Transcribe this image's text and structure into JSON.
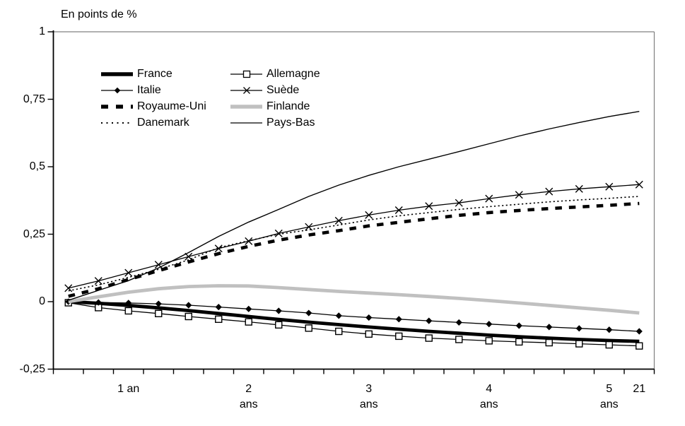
{
  "title": "En points de %",
  "colors": {
    "background": "#ffffff",
    "axis": "#000000",
    "plot_border": "#808080",
    "finland_gray": "#c0c0c0"
  },
  "chart_data": {
    "type": "line",
    "title": "En points de %",
    "xlabel": "",
    "ylabel": "En points de %",
    "ylim": [
      -0.25,
      1
    ],
    "grid": false,
    "legend_position": "top-left-two-columns",
    "n_points": 20,
    "y_ticks": [
      {
        "label": "1",
        "value": 1
      },
      {
        "label": "0,75",
        "value": 0.75
      },
      {
        "label": "0,5",
        "value": 0.5
      },
      {
        "label": "0,25",
        "value": 0.25
      },
      {
        "label": "0",
        "value": 0
      },
      {
        "label": "-0,25",
        "value": -0.25
      }
    ],
    "x_tick_labels": [
      {
        "text": "1 an",
        "sub": "",
        "category": 3
      },
      {
        "text": "2",
        "sub": "ans",
        "category": 7
      },
      {
        "text": "3",
        "sub": "ans",
        "category": 11
      },
      {
        "text": "4",
        "sub": "ans",
        "category": 15
      },
      {
        "text": "5",
        "sub": "ans",
        "category": 19
      },
      {
        "text": "21",
        "sub": "",
        "category": 20
      }
    ],
    "series": [
      {
        "name": "France",
        "color": "#000000",
        "style": "solid-thick",
        "marker": "none",
        "values": [
          0,
          -0.006,
          -0.014,
          -0.023,
          -0.033,
          -0.044,
          -0.055,
          -0.066,
          -0.076,
          -0.085,
          -0.094,
          -0.102,
          -0.11,
          -0.117,
          -0.124,
          -0.13,
          -0.135,
          -0.14,
          -0.144,
          -0.147
        ]
      },
      {
        "name": "Allemagne",
        "color": "#000000",
        "style": "solid-thin",
        "marker": "square-open",
        "values": [
          -0.004,
          -0.022,
          -0.034,
          -0.044,
          -0.055,
          -0.065,
          -0.075,
          -0.086,
          -0.098,
          -0.11,
          -0.12,
          -0.128,
          -0.135,
          -0.14,
          -0.145,
          -0.149,
          -0.152,
          -0.156,
          -0.16,
          -0.164
        ]
      },
      {
        "name": "Italie",
        "color": "#000000",
        "style": "solid-thin",
        "marker": "diamond-filled",
        "values": [
          0,
          -0.003,
          -0.005,
          -0.008,
          -0.013,
          -0.02,
          -0.027,
          -0.034,
          -0.042,
          -0.052,
          -0.059,
          -0.065,
          -0.071,
          -0.077,
          -0.083,
          -0.089,
          -0.094,
          -0.099,
          -0.104,
          -0.11
        ]
      },
      {
        "name": "Suède",
        "color": "#000000",
        "style": "solid-thin",
        "marker": "x",
        "values": [
          0.05,
          0.077,
          0.107,
          0.137,
          0.167,
          0.197,
          0.224,
          0.253,
          0.277,
          0.3,
          0.321,
          0.339,
          0.354,
          0.366,
          0.382,
          0.396,
          0.408,
          0.418,
          0.426,
          0.434
        ]
      },
      {
        "name": "Royaume-Uni",
        "color": "#000000",
        "style": "dashed-thick",
        "marker": "none",
        "values": [
          0.02,
          0.048,
          0.082,
          0.115,
          0.147,
          0.178,
          0.205,
          0.228,
          0.247,
          0.263,
          0.281,
          0.294,
          0.307,
          0.32,
          0.33,
          0.338,
          0.345,
          0.351,
          0.357,
          0.364
        ]
      },
      {
        "name": "Finlande",
        "color": "#c0c0c0",
        "style": "solid-thick",
        "marker": "none",
        "values": [
          0.0,
          0.018,
          0.035,
          0.048,
          0.056,
          0.059,
          0.058,
          0.052,
          0.045,
          0.038,
          0.032,
          0.026,
          0.019,
          0.012,
          0.004,
          -0.005,
          -0.014,
          -0.023,
          -0.032,
          -0.042
        ]
      },
      {
        "name": "Danemark",
        "color": "#000000",
        "style": "dotted",
        "marker": "none",
        "values": [
          0.04,
          0.062,
          0.09,
          0.12,
          0.155,
          0.2,
          0.226,
          0.25,
          0.266,
          0.284,
          0.303,
          0.318,
          0.33,
          0.342,
          0.352,
          0.361,
          0.37,
          0.377,
          0.383,
          0.39
        ]
      },
      {
        "name": "Pays-Bas",
        "color": "#000000",
        "style": "solid-thin-plain",
        "marker": "none",
        "values": [
          0.005,
          0.042,
          0.078,
          0.125,
          0.182,
          0.242,
          0.295,
          0.342,
          0.39,
          0.432,
          0.468,
          0.5,
          0.528,
          0.556,
          0.585,
          0.614,
          0.64,
          0.664,
          0.686,
          0.705
        ]
      }
    ]
  }
}
